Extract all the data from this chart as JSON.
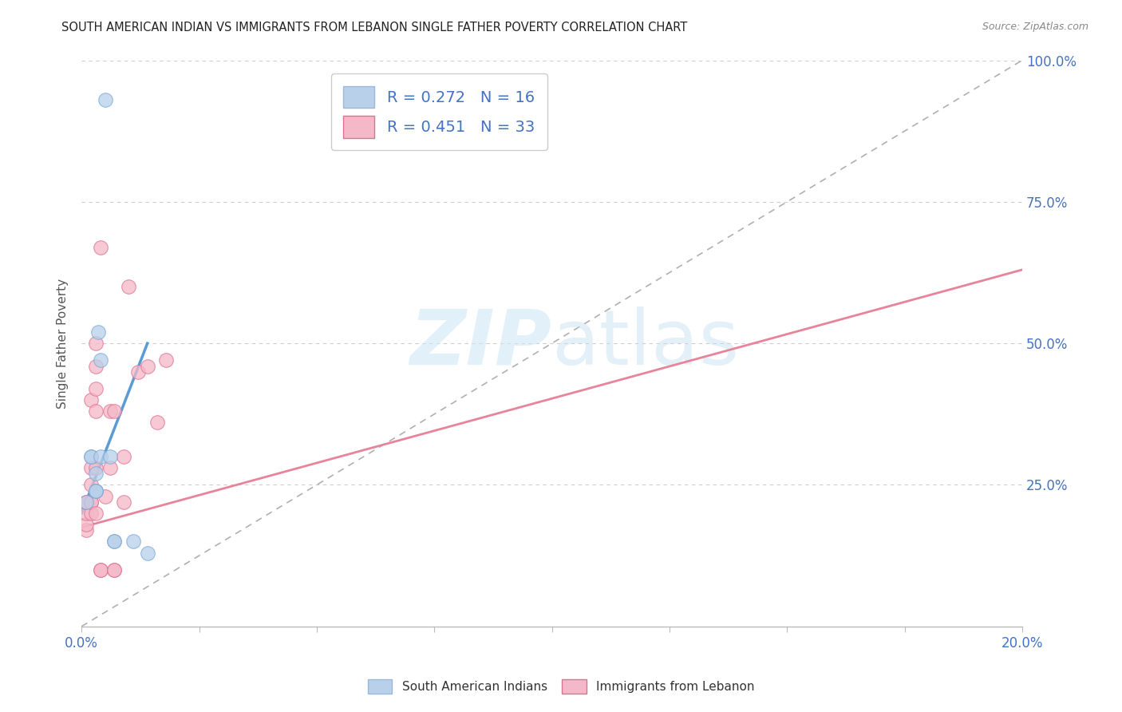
{
  "title": "SOUTH AMERICAN INDIAN VS IMMIGRANTS FROM LEBANON SINGLE FATHER POVERTY CORRELATION CHART",
  "source": "Source: ZipAtlas.com",
  "ylabel": "Single Father Poverty",
  "legend1_label": "R = 0.272   N = 16",
  "legend2_label": "R = 0.451   N = 33",
  "legend1_color": "#b8d0ea",
  "legend2_color": "#f4b8c8",
  "scatter_blue": {
    "x": [
      0.001,
      0.002,
      0.002,
      0.003,
      0.003,
      0.003,
      0.003,
      0.0035,
      0.004,
      0.004,
      0.005,
      0.006,
      0.007,
      0.007,
      0.011,
      0.014
    ],
    "y": [
      0.22,
      0.3,
      0.3,
      0.24,
      0.24,
      0.24,
      0.27,
      0.52,
      0.47,
      0.3,
      0.93,
      0.3,
      0.15,
      0.15,
      0.15,
      0.13
    ]
  },
  "scatter_pink": {
    "x": [
      0.001,
      0.001,
      0.001,
      0.001,
      0.001,
      0.002,
      0.002,
      0.002,
      0.002,
      0.002,
      0.002,
      0.003,
      0.003,
      0.003,
      0.003,
      0.003,
      0.003,
      0.004,
      0.004,
      0.004,
      0.005,
      0.006,
      0.006,
      0.007,
      0.007,
      0.007,
      0.009,
      0.009,
      0.01,
      0.012,
      0.014,
      0.016,
      0.018
    ],
    "y": [
      0.17,
      0.18,
      0.2,
      0.22,
      0.22,
      0.2,
      0.22,
      0.22,
      0.25,
      0.28,
      0.4,
      0.2,
      0.28,
      0.38,
      0.42,
      0.46,
      0.5,
      0.1,
      0.1,
      0.67,
      0.23,
      0.28,
      0.38,
      0.1,
      0.1,
      0.38,
      0.3,
      0.22,
      0.6,
      0.45,
      0.46,
      0.36,
      0.47
    ]
  },
  "blue_line": {
    "x": [
      0.0,
      0.014
    ],
    "y": [
      0.2,
      0.5
    ]
  },
  "pink_line": {
    "x": [
      0.0,
      0.2
    ],
    "y": [
      0.175,
      0.63
    ]
  },
  "diagonal_line": {
    "x": [
      0.0,
      0.2
    ],
    "y": [
      0.0,
      1.0
    ]
  },
  "xmin": 0.0,
  "xmax": 0.2,
  "ymin": 0.0,
  "ymax": 1.0,
  "background_color": "#ffffff",
  "grid_color": "#cccccc",
  "watermark_zip": "ZIP",
  "watermark_atlas": "atlas",
  "title_fontsize": 11,
  "axis_color": "#4472c4"
}
